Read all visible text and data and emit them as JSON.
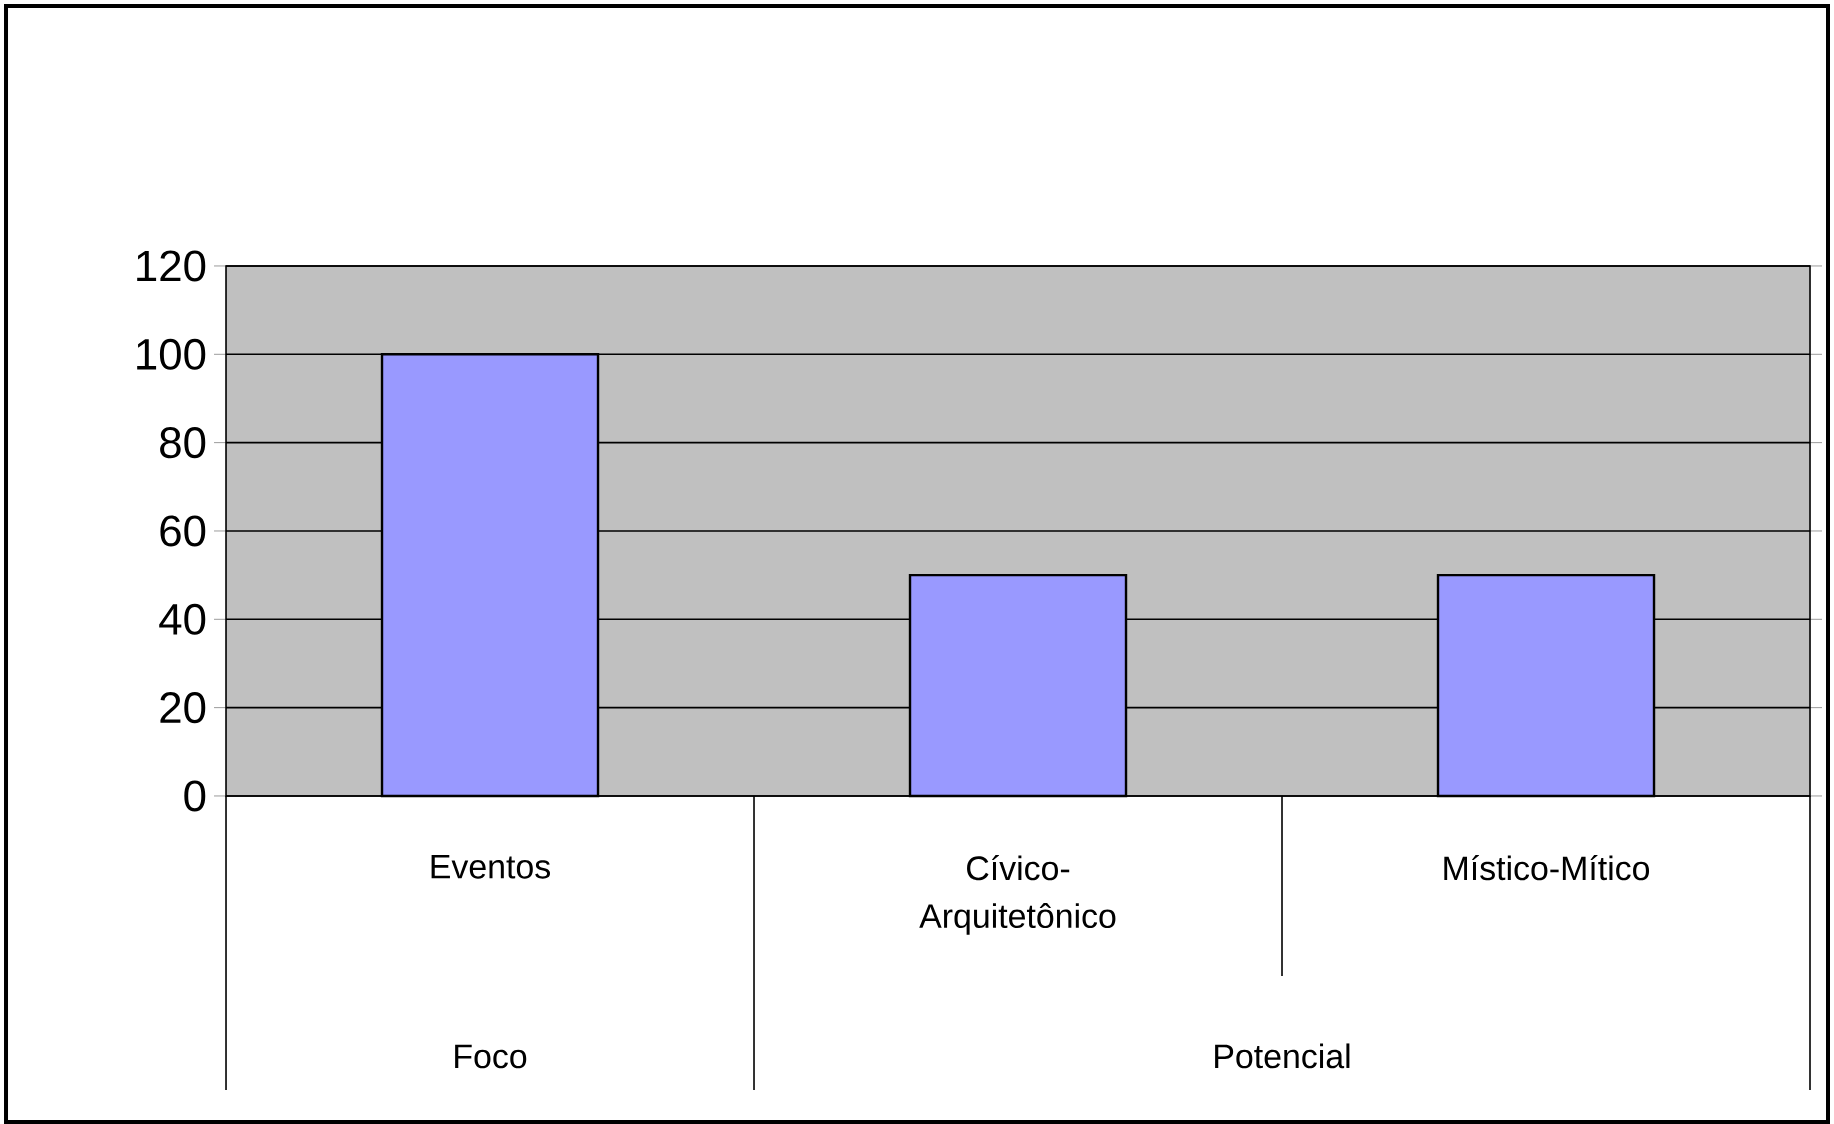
{
  "chart_data": {
    "type": "bar",
    "categories": [
      "Eventos",
      "Cívico-Arquitetônico",
      "Místico-Mítico"
    ],
    "values": [
      100,
      50,
      50
    ],
    "color": "#9999ff",
    "ylim": [
      0,
      120
    ],
    "yticks": [
      0,
      20,
      40,
      60,
      80,
      100,
      120
    ],
    "grid": "y",
    "annotations": [
      "Foco",
      "Potencial"
    ]
  }
}
